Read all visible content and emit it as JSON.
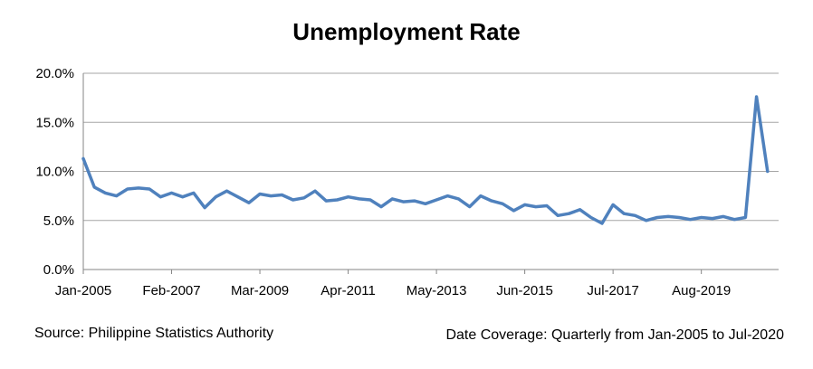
{
  "chart_data": {
    "type": "line",
    "title": "Unemployment Rate",
    "xlabel": "",
    "ylabel": "",
    "ylim": [
      0,
      20
    ],
    "yticks": [
      "0.0%",
      "5.0%",
      "10.0%",
      "15.0%",
      "20.0%"
    ],
    "ytick_values": [
      0,
      5,
      10,
      15,
      20
    ],
    "xtick_labels": [
      "Jan-2005",
      "Feb-2007",
      "Mar-2009",
      "Apr-2011",
      "May-2013",
      "Jun-2015",
      "Jul-2017",
      "Aug-2019"
    ],
    "grid": true,
    "line_color": "#4f81bd",
    "series": [
      {
        "values": [
          11.3,
          8.4,
          7.8,
          7.5,
          8.2,
          8.3,
          8.2,
          7.4,
          7.8,
          7.4,
          7.8,
          6.3,
          7.4,
          8.0,
          7.4,
          6.8,
          7.7,
          7.5,
          7.6,
          7.1,
          7.3,
          8.0,
          7.0,
          7.1,
          7.4,
          7.2,
          7.1,
          6.4,
          7.2,
          6.9,
          7.0,
          6.7,
          7.1,
          7.5,
          7.2,
          6.4,
          7.5,
          7.0,
          6.7,
          6.0,
          6.6,
          6.4,
          6.5,
          5.5,
          5.7,
          6.1,
          5.3,
          4.7,
          6.6,
          5.7,
          5.5,
          5.0,
          5.3,
          5.4,
          5.3,
          5.1,
          5.3,
          5.2,
          5.4,
          5.1,
          5.3,
          17.6,
          10.0
        ]
      }
    ]
  },
  "source_note": "Source: Philippine Statistics Authority",
  "coverage_note": "Date Coverage: Quarterly from Jan-2005 to Jul-2020"
}
